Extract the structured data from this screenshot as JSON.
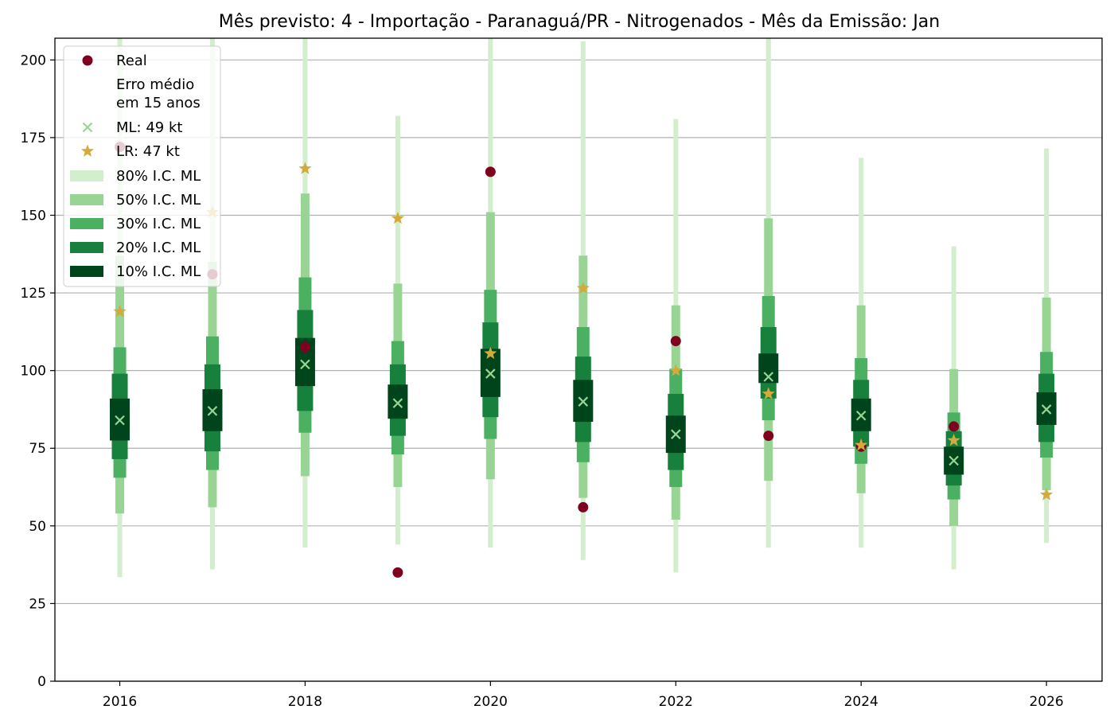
{
  "chart_data": {
    "type": "box-interval",
    "title": "Mês previsto: 4 - Importação - Paranaguá/PR - Nitrogenados - Mês da Emissão: Jan",
    "xlabel": "",
    "ylabel": "",
    "xlim": [
      2015.3,
      2026.6
    ],
    "ylim": [
      0,
      207
    ],
    "x_ticks": [
      2016,
      2018,
      2020,
      2022,
      2024,
      2026
    ],
    "y_ticks": [
      0,
      25,
      50,
      75,
      100,
      125,
      150,
      175,
      200
    ],
    "grid": "horizontal",
    "legend_position": "top-left",
    "colors": {
      "real": "#800020",
      "ml": "#98d594",
      "lr": "#d4aa3a",
      "ci80": "#d3eecd",
      "ci50": "#98d594",
      "ci30": "#4bb062",
      "ci20": "#16803c",
      "ci10": "#00441b",
      "grid": "#b0b0b0"
    },
    "legend": [
      {
        "key": "real",
        "label": "Real",
        "marker": "circle"
      },
      {
        "key": "note",
        "label": "Erro médio",
        "label2": "em 15 anos",
        "marker": "none"
      },
      {
        "key": "ml",
        "label": "ML: 49 kt",
        "marker": "x"
      },
      {
        "key": "lr",
        "label": "LR: 47 kt",
        "marker": "star"
      },
      {
        "key": "ci80",
        "label": "80% I.C. ML",
        "marker": "bar"
      },
      {
        "key": "ci50",
        "label": "50% I.C. ML",
        "marker": "bar"
      },
      {
        "key": "ci30",
        "label": "30% I.C. ML",
        "marker": "bar"
      },
      {
        "key": "ci20",
        "label": "20% I.C. ML",
        "marker": "bar"
      },
      {
        "key": "ci10",
        "label": "10% I.C. ML",
        "marker": "bar"
      }
    ],
    "series": [
      {
        "year": 2016,
        "real": 172,
        "ml": 84,
        "lr": 119,
        "ci80": [
          33.5,
          208
        ],
        "ci50": [
          54,
          137
        ],
        "ci30": [
          65.5,
          107.5
        ],
        "ci20": [
          71.5,
          99
        ],
        "ci10": [
          77.5,
          91
        ]
      },
      {
        "year": 2017,
        "real": 131,
        "ml": 87,
        "lr": 151,
        "ci80": [
          36,
          208
        ],
        "ci50": [
          56,
          135
        ],
        "ci30": [
          68,
          111
        ],
        "ci20": [
          74,
          102
        ],
        "ci10": [
          80.5,
          94
        ]
      },
      {
        "year": 2018,
        "real": 107.5,
        "ml": 102,
        "lr": 165,
        "ci80": [
          43,
          208
        ],
        "ci50": [
          66,
          157
        ],
        "ci30": [
          80,
          130
        ],
        "ci20": [
          87,
          119.5
        ],
        "ci10": [
          95,
          110.5
        ]
      },
      {
        "year": 2019,
        "real": 35,
        "ml": 89.5,
        "lr": 149,
        "ci80": [
          44,
          182
        ],
        "ci50": [
          62.5,
          128
        ],
        "ci30": [
          73,
          109.5
        ],
        "ci20": [
          79,
          102
        ],
        "ci10": [
          84.5,
          95.5
        ]
      },
      {
        "year": 2020,
        "real": 164,
        "ml": 99,
        "lr": 105.5,
        "ci80": [
          43,
          208
        ],
        "ci50": [
          65,
          151
        ],
        "ci30": [
          78,
          126
        ],
        "ci20": [
          85,
          115.5
        ],
        "ci10": [
          91.5,
          107
        ]
      },
      {
        "year": 2021,
        "real": 56,
        "ml": 90,
        "lr": 126.5,
        "ci80": [
          39,
          206
        ],
        "ci50": [
          59,
          137
        ],
        "ci30": [
          70.5,
          114
        ],
        "ci20": [
          77,
          104.5
        ],
        "ci10": [
          83.5,
          97
        ]
      },
      {
        "year": 2022,
        "real": 109.5,
        "ml": 79.5,
        "lr": 100,
        "ci80": [
          35,
          181
        ],
        "ci50": [
          52,
          121
        ],
        "ci30": [
          62.5,
          100.5
        ],
        "ci20": [
          68,
          92.5
        ],
        "ci10": [
          73.5,
          85.5
        ]
      },
      {
        "year": 2023,
        "real": 79,
        "ml": 98,
        "lr": 92.5,
        "ci80": [
          43,
          208
        ],
        "ci50": [
          64.5,
          149
        ],
        "ci30": [
          84,
          124
        ],
        "ci20": [
          91,
          114
        ],
        "ci10": [
          96,
          105.5
        ]
      },
      {
        "year": 2024,
        "real": 75.5,
        "ml": 85.5,
        "lr": 76,
        "ci80": [
          43,
          168.5
        ],
        "ci50": [
          60.5,
          121
        ],
        "ci30": [
          70,
          104
        ],
        "ci20": [
          75.5,
          97
        ],
        "ci10": [
          80.5,
          91
        ]
      },
      {
        "year": 2025,
        "real": 82,
        "ml": 71,
        "lr": 77.5,
        "ci80": [
          36,
          140
        ],
        "ci50": [
          50,
          100.5
        ],
        "ci30": [
          58.5,
          86.5
        ],
        "ci20": [
          63,
          80.5
        ],
        "ci10": [
          66.5,
          75.5
        ]
      },
      {
        "year": 2026,
        "real": null,
        "ml": 87.5,
        "lr": 60,
        "ci80": [
          44.5,
          171.5
        ],
        "ci50": [
          61.5,
          123.5
        ],
        "ci30": [
          72,
          106
        ],
        "ci20": [
          77,
          99
        ],
        "ci10": [
          82.5,
          93
        ]
      }
    ]
  }
}
